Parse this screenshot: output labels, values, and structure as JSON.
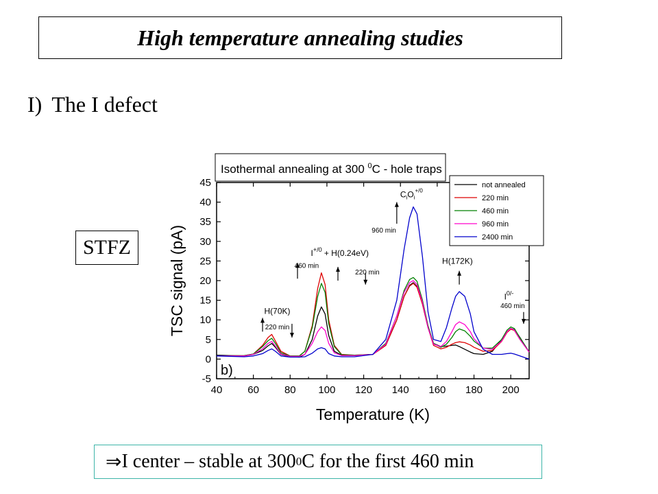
{
  "slide": {
    "title": "High temperature annealing studies",
    "heading_number": "I)",
    "heading_text": "The I defect",
    "sample_label": "STFZ",
    "conclusion": {
      "arrow_symbol": "⇒",
      "text_before": "I center – stable at 300 ",
      "superscript": "0",
      "text_after": "C for the first 460 min"
    }
  },
  "chart_data": {
    "type": "line",
    "title": {
      "before": "Isothermal annealing at 300 ",
      "superscript": "0",
      "after": "C - hole traps"
    },
    "xlabel": "Temperature (K)",
    "ylabel": "TSC signal (pA)",
    "panel_label": "b)",
    "xlim": [
      40,
      210
    ],
    "ylim": [
      -5,
      45
    ],
    "xticks": [
      40,
      60,
      80,
      100,
      120,
      140,
      160,
      180,
      200
    ],
    "yticks": [
      -5,
      0,
      5,
      10,
      15,
      20,
      25,
      30,
      35,
      40,
      45
    ],
    "grid": false,
    "legend_position": "top-right",
    "series": [
      {
        "name": "not annealed",
        "color": "#000000",
        "x": [
          40,
          55,
          60,
          65,
          68,
          70,
          72,
          75,
          80,
          85,
          88,
          92,
          95,
          97,
          99,
          101,
          104,
          108,
          115,
          125,
          132,
          138,
          142,
          145,
          147,
          149,
          152,
          155,
          158,
          162,
          165,
          168,
          170,
          172,
          175,
          178,
          180,
          185,
          190,
          195,
          198,
          200,
          202,
          205,
          210
        ],
        "y": [
          1.0,
          0.8,
          1.2,
          2.2,
          3.4,
          4.0,
          3.0,
          1.2,
          0.6,
          0.5,
          1.2,
          5.0,
          11.0,
          13.3,
          11.5,
          6.0,
          2.0,
          1.0,
          0.9,
          1.2,
          3.5,
          10.0,
          16.0,
          18.8,
          19.5,
          18.5,
          14.0,
          8.0,
          4.0,
          3.2,
          3.3,
          3.5,
          3.6,
          3.2,
          2.5,
          1.8,
          1.4,
          1.2,
          2.0,
          5.0,
          7.0,
          7.8,
          7.5,
          5.5,
          1.8
        ]
      },
      {
        "name": "220 min",
        "color": "#dd0000",
        "x": [
          40,
          55,
          60,
          65,
          68,
          70,
          72,
          75,
          80,
          85,
          88,
          92,
          95,
          97,
          99,
          101,
          104,
          108,
          115,
          125,
          132,
          138,
          142,
          145,
          147,
          149,
          152,
          155,
          158,
          162,
          165,
          168,
          170,
          172,
          175,
          178,
          180,
          185,
          190,
          195,
          198,
          200,
          202,
          205,
          210
        ],
        "y": [
          0.8,
          0.9,
          1.3,
          3.5,
          5.5,
          6.3,
          4.6,
          2.0,
          0.8,
          0.8,
          2.0,
          8.5,
          18.0,
          22.0,
          19.0,
          10.0,
          3.5,
          1.2,
          1.0,
          1.2,
          3.5,
          10.0,
          16.0,
          18.6,
          19.3,
          18.3,
          14.0,
          8.0,
          3.5,
          2.6,
          3.0,
          3.8,
          4.2,
          4.4,
          4.2,
          3.6,
          3.0,
          2.0,
          2.2,
          4.5,
          6.8,
          7.6,
          7.3,
          5.0,
          1.8
        ]
      },
      {
        "name": "460 min",
        "color": "#008000",
        "x": [
          40,
          55,
          60,
          65,
          68,
          70,
          72,
          75,
          80,
          85,
          88,
          92,
          95,
          97,
          99,
          101,
          104,
          108,
          115,
          125,
          132,
          138,
          142,
          145,
          147,
          149,
          152,
          155,
          158,
          162,
          165,
          168,
          170,
          172,
          175,
          178,
          180,
          185,
          190,
          195,
          198,
          200,
          202,
          205,
          210
        ],
        "y": [
          0.8,
          0.9,
          1.3,
          3.2,
          4.7,
          5.3,
          4.0,
          1.6,
          0.8,
          0.8,
          2.0,
          8.0,
          16.0,
          19.3,
          17.0,
          9.0,
          3.2,
          1.1,
          1.0,
          1.2,
          4.0,
          11.0,
          17.5,
          20.3,
          20.8,
          19.8,
          15.0,
          8.5,
          4.0,
          3.0,
          3.8,
          5.5,
          7.0,
          7.7,
          7.2,
          5.8,
          4.6,
          2.8,
          2.8,
          5.0,
          7.4,
          8.2,
          7.8,
          5.4,
          1.8
        ]
      },
      {
        "name": "960 min",
        "color": "#ff00cc",
        "x": [
          40,
          55,
          60,
          65,
          68,
          70,
          72,
          75,
          80,
          85,
          88,
          92,
          95,
          97,
          99,
          101,
          104,
          108,
          115,
          125,
          132,
          138,
          142,
          145,
          147,
          149,
          152,
          155,
          158,
          162,
          165,
          168,
          170,
          172,
          175,
          178,
          180,
          185,
          190,
          195,
          198,
          200,
          202,
          205,
          210
        ],
        "y": [
          0.8,
          0.8,
          1.2,
          2.6,
          4.0,
          4.5,
          3.3,
          1.3,
          0.7,
          0.7,
          1.2,
          4.0,
          7.0,
          8.2,
          7.3,
          4.0,
          1.6,
          0.9,
          0.9,
          1.2,
          3.8,
          11.0,
          17.0,
          19.5,
          20.0,
          19.0,
          14.5,
          8.0,
          3.8,
          3.2,
          4.5,
          7.0,
          8.8,
          9.5,
          8.8,
          7.0,
          5.2,
          2.8,
          2.5,
          4.6,
          7.0,
          7.8,
          7.4,
          5.0,
          1.8
        ]
      },
      {
        "name": "2400 min",
        "color": "#0000cc",
        "x": [
          40,
          55,
          60,
          65,
          68,
          70,
          72,
          75,
          80,
          85,
          88,
          92,
          95,
          97,
          99,
          101,
          104,
          108,
          115,
          125,
          132,
          138,
          142,
          145,
          147,
          149,
          152,
          155,
          158,
          162,
          165,
          168,
          170,
          172,
          175,
          178,
          180,
          185,
          190,
          195,
          198,
          200,
          202,
          205,
          210
        ],
        "y": [
          0.8,
          0.6,
          0.8,
          1.4,
          2.2,
          2.6,
          2.0,
          0.8,
          0.5,
          0.5,
          0.6,
          1.5,
          2.6,
          2.9,
          2.6,
          1.4,
          0.8,
          0.6,
          0.6,
          1.2,
          5.0,
          15.0,
          28.0,
          36.0,
          38.8,
          37.0,
          26.0,
          12.0,
          5.0,
          4.5,
          8.0,
          13.0,
          16.0,
          17.2,
          16.0,
          11.5,
          7.0,
          2.5,
          1.2,
          1.2,
          1.4,
          1.5,
          1.3,
          0.8,
          0.0
        ]
      }
    ],
    "annotations": [
      {
        "text": "H(70K)",
        "x": 73,
        "y": 11.5
      },
      {
        "text": "220 min",
        "x": 73,
        "y": 7.6,
        "small": true
      },
      {
        "parts": [
          "I",
          "+/0",
          " + H(0.24eV)"
        ],
        "x": 107,
        "y": 26.3
      },
      {
        "text": "460 min",
        "x": 89,
        "y": 23.2,
        "small": true
      },
      {
        "text": "220 min",
        "x": 122,
        "y": 21.6,
        "small": true
      },
      {
        "parts": [
          "C",
          "i",
          "O",
          "i",
          "+/0"
        ],
        "x": 146,
        "y": 41.2,
        "special": "cioi"
      },
      {
        "text": "960 min",
        "x": 131,
        "y": 32.2,
        "small": true
      },
      {
        "text": "H(172K)",
        "x": 171,
        "y": 24.3
      },
      {
        "parts": [
          "I",
          "0/-"
        ],
        "x": 199,
        "y": 15.2,
        "special": "izero"
      },
      {
        "text": "460 min",
        "x": 201,
        "y": 13.0,
        "small": true
      }
    ],
    "arrows": [
      {
        "x": 65,
        "y_from": 7.0,
        "y_to": 10.5,
        "direction": "up"
      },
      {
        "x": 81,
        "y_from": 9.0,
        "y_to": 5.5,
        "direction": "down"
      },
      {
        "x": 84,
        "y_from": 20.5,
        "y_to": 24.5,
        "direction": "up"
      },
      {
        "x": 106,
        "y_from": 20.0,
        "y_to": 23.5,
        "direction": "up"
      },
      {
        "x": 121,
        "y_from": 22.0,
        "y_to": 19.0,
        "direction": "down"
      },
      {
        "x": 138,
        "y_from": 34.5,
        "y_to": 40.0,
        "direction": "up"
      },
      {
        "x": 172,
        "y_from": 19.0,
        "y_to": 22.5,
        "direction": "up"
      },
      {
        "x": 207,
        "y_from": 12.0,
        "y_to": 9.0,
        "direction": "down"
      }
    ]
  }
}
